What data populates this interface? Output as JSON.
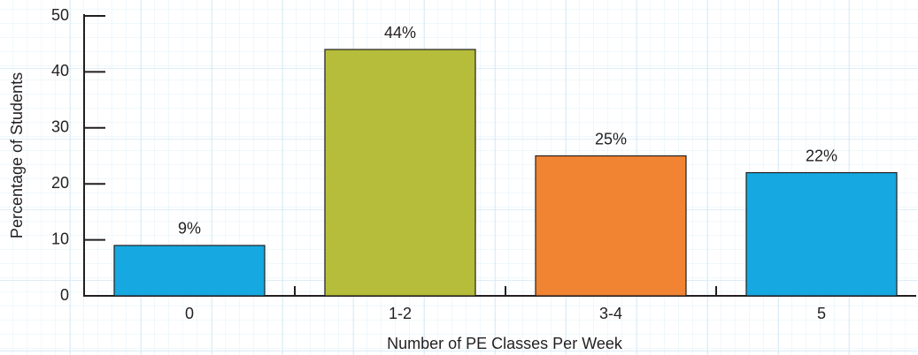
{
  "chart_data": {
    "type": "bar",
    "xlabel": "Number of PE Classes Per Week",
    "ylabel": "Percentage of Students",
    "categories": [
      "0",
      "1-2",
      "3-4",
      "5"
    ],
    "values": [
      9,
      44,
      25,
      22
    ],
    "value_labels": [
      "9%",
      "44%",
      "25%",
      "22%"
    ],
    "colors": [
      "#16a8e0",
      "#b5bd3a",
      "#f08433",
      "#16a8e0"
    ],
    "ylim": [
      0,
      50
    ],
    "yticks": [
      0,
      10,
      20,
      30,
      40,
      50
    ]
  }
}
